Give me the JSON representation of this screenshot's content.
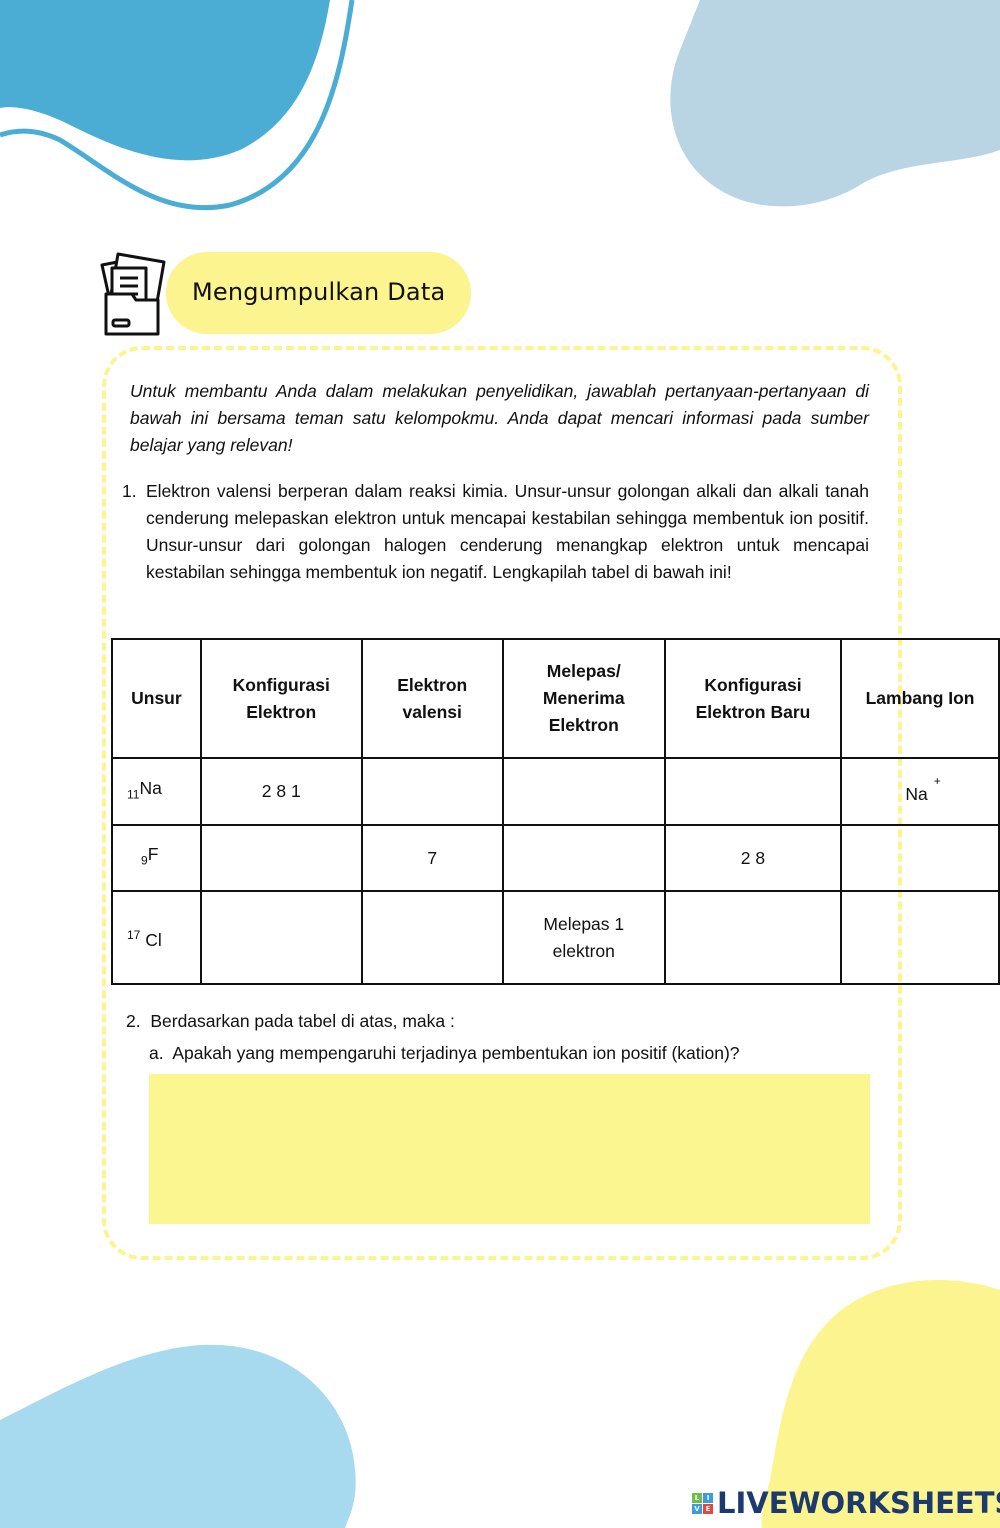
{
  "header": {
    "title": "Mengumpulkan Data",
    "icon": "file-folder-icon"
  },
  "intro": "Untuk membantu Anda dalam melakukan penyelidikan, jawablah pertanyaan-pertanyaan di bawah ini bersama teman satu kelompokmu. Anda dapat mencari informasi pada sumber belajar yang relevan!",
  "question1": {
    "number": "1.",
    "text": "Elektron valensi berperan dalam reaksi kimia. Unsur-unsur golongan alkali dan alkali tanah cenderung melepaskan elektron untuk mencapai kestabilan sehingga membentuk ion positif. Unsur-unsur dari golongan halogen cenderung menangkap elektron untuk mencapai kestabilan sehingga membentuk ion negatif. Lengkapilah tabel di bawah ini!"
  },
  "table": {
    "headers": [
      "Unsur",
      "Konfigurasi Elektron",
      "Elektron valensi",
      "Melepas/ Menerima Elektron",
      "Konfigurasi Elektron Baru",
      "Lambang Ion"
    ],
    "rows": [
      {
        "number": "11",
        "symbol": "Na",
        "config": "2 8 1",
        "valence": "",
        "transfer": "",
        "new_config": "",
        "ion": "Na",
        "ion_charge": "+"
      },
      {
        "number": "9",
        "symbol": "F",
        "config": "",
        "valence": "7",
        "transfer": "",
        "new_config": "2 8",
        "ion": "",
        "ion_charge": ""
      },
      {
        "number": "17",
        "symbol": "Cl",
        "config": "",
        "valence": "",
        "transfer": "Melepas 1 elektron",
        "new_config": "",
        "ion": "",
        "ion_charge": ""
      }
    ]
  },
  "question2": {
    "number": "2.",
    "text": "Berdasarkan pada tabel di atas, maka :",
    "sub_a": {
      "label": "a.",
      "text": "Apakah yang mempengaruhi terjadinya pembentukan ion positif (kation)?",
      "answer": ""
    }
  },
  "brand": {
    "logo_text": "LIVEWORKSHEETS",
    "badge": [
      "L",
      "I",
      "V",
      "E"
    ]
  },
  "colors": {
    "yellow": "#fbf48f",
    "blue_dark": "#4badd3",
    "blue_light": "#b9d5e3",
    "blue_sky": "#a8daef",
    "logo": "#1d3a6e"
  }
}
